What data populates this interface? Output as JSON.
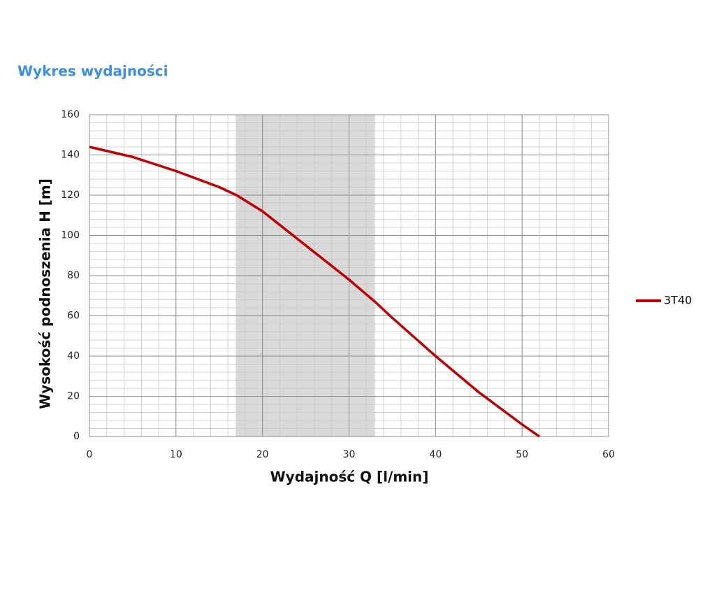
{
  "page_title": "Wykres wydajności",
  "chart_data": {
    "type": "line",
    "x_label": "Wydajność Q [l/min]",
    "y_label": "Wysokość podnoszenia H [m]",
    "x": [
      0,
      5,
      10,
      15,
      17,
      20,
      25,
      30,
      33,
      35,
      40,
      45,
      50,
      52
    ],
    "series": [
      {
        "name": "3T40",
        "color": "#c00000",
        "values": [
          144,
          139,
          132,
          124,
          120,
          112,
          95,
          78,
          67,
          59,
          40,
          22,
          6,
          0
        ]
      }
    ],
    "xlim": [
      0,
      60
    ],
    "ylim": [
      0,
      160
    ],
    "xticks": [
      0,
      10,
      20,
      30,
      40,
      50,
      60
    ],
    "yticks": [
      0,
      20,
      40,
      60,
      80,
      100,
      120,
      140,
      160
    ],
    "minor_xticks": [
      0,
      2,
      4,
      6,
      8,
      10,
      12,
      14,
      16,
      18,
      20,
      22,
      24,
      26,
      28,
      30,
      32,
      34,
      36,
      38,
      40,
      42,
      44,
      46,
      48,
      50,
      52,
      54,
      56,
      58,
      60
    ],
    "minor_yticks": [
      0,
      4,
      8,
      12,
      16,
      20,
      24,
      28,
      32,
      36,
      40,
      44,
      48,
      52,
      56,
      60,
      64,
      68,
      72,
      76,
      80,
      84,
      88,
      92,
      96,
      100,
      104,
      108,
      112,
      116,
      120,
      124,
      128,
      132,
      136,
      140,
      144,
      148,
      152,
      156,
      160
    ],
    "highlight_range": [
      16.9,
      33
    ],
    "highlight_color": "#d9d9d9",
    "grid": true,
    "legend": "right"
  }
}
